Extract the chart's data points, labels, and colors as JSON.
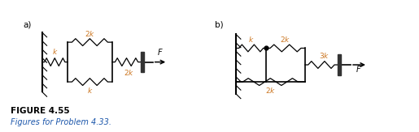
{
  "fig_label_a": "a)",
  "fig_label_b": "b)",
  "figure_title": "FIGURE 4.55",
  "figure_caption": "Figures for Problem 4.33.",
  "title_color": "#000000",
  "caption_color": "#1a55aa",
  "bg_color": "#ffffff",
  "spring_color": "#000000",
  "wall_color": "#000000",
  "force_color": "#000000",
  "label_color": "#cc7722",
  "label_fs": 6.5,
  "caption_fs": 7.0,
  "title_fs": 7.5,
  "arrow_color": "#000000",
  "dot_color": "#000000"
}
